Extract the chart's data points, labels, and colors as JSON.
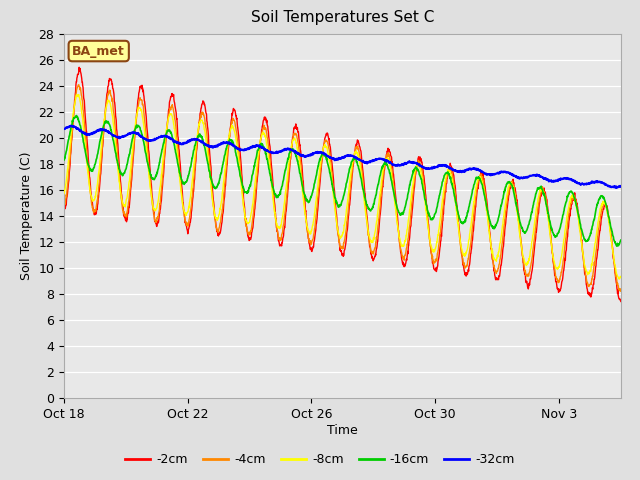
{
  "title": "Soil Temperatures Set C",
  "xlabel": "Time",
  "ylabel": "Soil Temperature (C)",
  "ylim": [
    0,
    28
  ],
  "yticks": [
    0,
    2,
    4,
    6,
    8,
    10,
    12,
    14,
    16,
    18,
    20,
    22,
    24,
    26,
    28
  ],
  "bg_color": "#e0e0e0",
  "plot_bg_color": "#e8e8e8",
  "legend_label": "BA_met",
  "legend_bg": "#ffff99",
  "legend_border": "#8b4513",
  "series_colors": {
    "-2cm": "#ff0000",
    "-4cm": "#ff8800",
    "-8cm": "#ffff00",
    "-16cm": "#00cc00",
    "-32cm": "#0000ff"
  },
  "series_linewidths": {
    "-2cm": 1.0,
    "-4cm": 1.0,
    "-8cm": 1.0,
    "-16cm": 1.2,
    "-32cm": 1.5
  },
  "xtick_dates": [
    "Oct 18",
    "Oct 22",
    "Oct 26",
    "Oct 30",
    "Nov 3"
  ],
  "xtick_positions": [
    0,
    4,
    8,
    12,
    16
  ],
  "xlim": [
    0,
    18
  ]
}
